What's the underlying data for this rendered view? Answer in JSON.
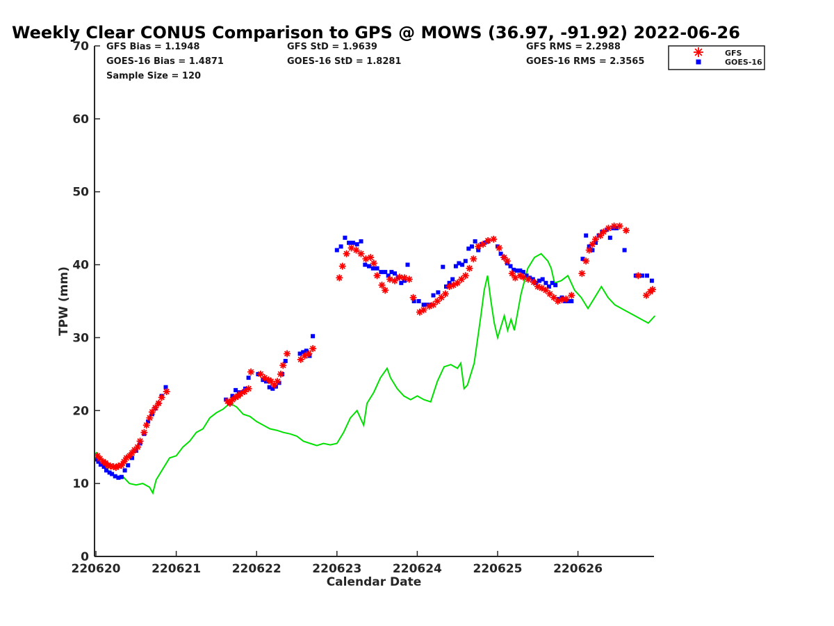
{
  "chart_data": {
    "type": "scatter",
    "title": "Weekly Clear CONUS Comparison to GPS @ MOWS (36.97, -91.92) 2022-06-26",
    "xlabel": "Calendar Date",
    "ylabel": "TPW (mm)",
    "xlim": [
      "2022-06-20",
      "2022-06-26T23:00"
    ],
    "ylim": [
      0,
      70
    ],
    "yticks": [
      0,
      10,
      20,
      30,
      40,
      50,
      60,
      70
    ],
    "xticks": [
      "220620",
      "220621",
      "220622",
      "220623",
      "220624",
      "220625",
      "220626"
    ],
    "grid": false,
    "legend_position": "top-right",
    "stats": [
      [
        "GFS Bias = 1.1948",
        "GFS StD = 1.9639",
        "GFS RMS = 2.2988"
      ],
      [
        "GOES-16 Bias = 1.4871",
        "GOES-16 StD = 1.8281",
        "GOES-16 RMS = 2.3565"
      ],
      [
        "Sample Size = 120"
      ]
    ],
    "series": [
      {
        "name": "GPS",
        "style": "line",
        "color": "#00e000",
        "points": [
          [
            "2022-06-20T00:00",
            14.3
          ],
          [
            "2022-06-20T02:00",
            13.2
          ],
          [
            "2022-06-20T04:00",
            11.5
          ],
          [
            "2022-06-20T06:00",
            11.0
          ],
          [
            "2022-06-20T08:00",
            11.0
          ],
          [
            "2022-06-20T10:00",
            10.0
          ],
          [
            "2022-06-20T12:00",
            9.8
          ],
          [
            "2022-06-20T14:00",
            10.0
          ],
          [
            "2022-06-20T16:00",
            9.5
          ],
          [
            "2022-06-20T17:00",
            8.7
          ],
          [
            "2022-06-20T18:00",
            10.5
          ],
          [
            "2022-06-20T20:00",
            12.0
          ],
          [
            "2022-06-20T22:00",
            13.5
          ],
          [
            "2022-06-21T00:00",
            13.8
          ],
          [
            "2022-06-20T23:00",
            13.3
          ],
          [
            "2022-06-21T02:00",
            15.0
          ]
        ]
      }
    ]
  }
}
